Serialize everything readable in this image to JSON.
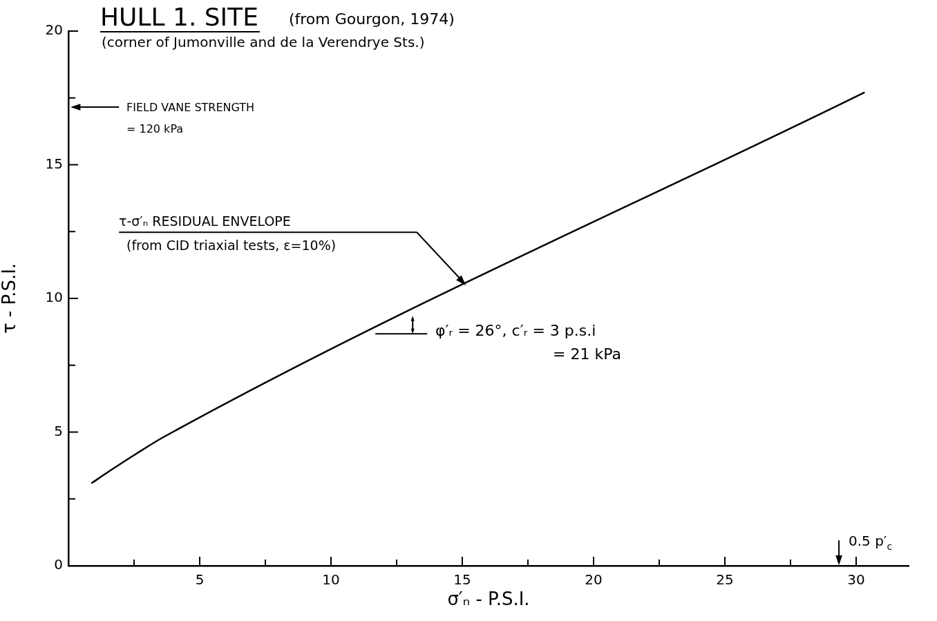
{
  "chart_data": {
    "type": "line",
    "title": "HULL 1. SITE",
    "subtitle": "(corner of Jumonville and de la Verendrye Sts.)",
    "xlabel": "σ′ₙ - P.S.I.",
    "ylabel": "τ - P.S.I.",
    "x": [
      0.9,
      1.5,
      2.6,
      3.6,
      30.3
    ],
    "series": [
      {
        "color": "#000000",
        "values": [
          3.1,
          3.5,
          4.2,
          4.8,
          17.7
        ]
      }
    ],
    "xlim": [
      0,
      32
    ],
    "ylim": [
      0,
      20
    ],
    "xticks": [
      {
        "value": 2.5,
        "label": null
      },
      5,
      {
        "value": 7.5,
        "label": null
      },
      10,
      {
        "value": 12.5,
        "label": null
      },
      15,
      {
        "value": 17.5,
        "label": null
      },
      20,
      {
        "value": 22.5,
        "label": null
      },
      25,
      {
        "value": 27.5,
        "label": null
      },
      30
    ],
    "yticks": [
      0,
      {
        "value": 2.5,
        "label": null
      },
      5,
      {
        "value": 7.5,
        "label": null
      },
      10,
      {
        "value": 12.5,
        "label": null
      },
      15,
      {
        "value": 17.5,
        "label": null
      },
      20
    ],
    "grid": false,
    "legend": false,
    "marker": "none",
    "line_style": "solid",
    "annotations": [
      "(from Gourgon, 1974)",
      "FIELD VANE STRENGTH\n= 120 kPa",
      "τ-σ′ₙ RESIDUAL ENVELOPE\n(from CID triaxial tests, ε=10%)",
      "φ′ᵣ = 26°, c′ᵣ = 3 p.s.i\n= 21 kPa",
      "0.5 p′$_{c}$"
    ]
  }
}
